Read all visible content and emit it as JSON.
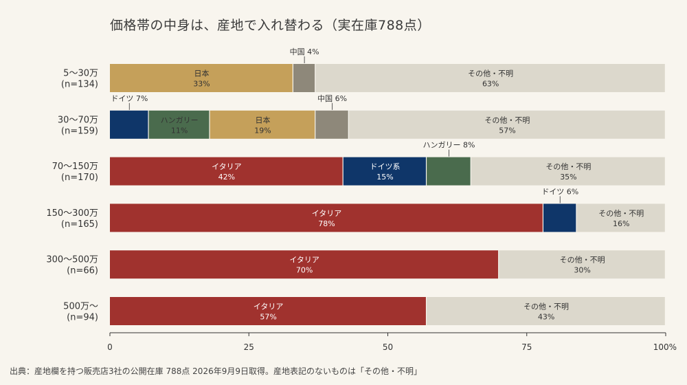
{
  "chart_data": {
    "type": "bar",
    "orientation": "horizontal",
    "stacked": true,
    "title": "価格帯の中身は、産地で入れ替わる（実在庫788点）",
    "xlim": [
      0,
      100
    ],
    "x_ticks": [
      "0",
      "25",
      "50",
      "75",
      "100%"
    ],
    "x_tick_values": [
      0,
      25,
      50,
      75,
      100
    ],
    "categories": [
      {
        "label_line1": "5〜30万",
        "label_line2": "(n=134)"
      },
      {
        "label_line1": "30〜70万",
        "label_line2": "(n=159)"
      },
      {
        "label_line1": "70〜150万",
        "label_line2": "(n=170)"
      },
      {
        "label_line1": "150〜300万",
        "label_line2": "(n=165)"
      },
      {
        "label_line1": "300〜500万",
        "label_line2": "(n=66)"
      },
      {
        "label_line1": "500万〜",
        "label_line2": "(n=94)"
      }
    ],
    "colors": {
      "italy": "#a0322e",
      "germany": "#0f3669",
      "hungary": "#4a6b4d",
      "japan": "#c5a05a",
      "china": "#8e887a",
      "other": "#dcd8cc"
    },
    "rows": [
      {
        "segments": [
          {
            "name": "日本",
            "value": 33,
            "label": "33%",
            "color": "japan",
            "text": "dark",
            "inside": true
          },
          {
            "name": "中国",
            "value": 4,
            "label": "4%",
            "color": "china",
            "inside": false,
            "callout": "中国 4%"
          },
          {
            "name": "その他・不明",
            "value": 63,
            "label": "63%",
            "color": "other",
            "text": "dark",
            "inside": true
          }
        ]
      },
      {
        "segments": [
          {
            "name": "ドイツ",
            "value": 7,
            "label": "7%",
            "color": "germany",
            "inside": false,
            "callout": "ドイツ 7%"
          },
          {
            "name": "ハンガリー",
            "value": 11,
            "label": "11%",
            "color": "hungary",
            "text": "dark",
            "inside": true
          },
          {
            "name": "日本",
            "value": 19,
            "label": "19%",
            "color": "japan",
            "text": "dark",
            "inside": true
          },
          {
            "name": "中国",
            "value": 6,
            "label": "6%",
            "color": "china",
            "inside": false,
            "callout": "中国 6%"
          },
          {
            "name": "その他・不明",
            "value": 57,
            "label": "57%",
            "color": "other",
            "text": "dark",
            "inside": true
          }
        ]
      },
      {
        "segments": [
          {
            "name": "イタリア",
            "value": 42,
            "label": "42%",
            "color": "italy",
            "text": "light",
            "inside": true
          },
          {
            "name": "ドイツ系",
            "value": 15,
            "label": "15%",
            "color": "germany",
            "text": "light",
            "inside": true
          },
          {
            "name": "ハンガリー",
            "value": 8,
            "label": "8%",
            "color": "hungary",
            "inside": false,
            "callout": "ハンガリー 8%"
          },
          {
            "name": "その他・不明",
            "value": 35,
            "label": "35%",
            "color": "other",
            "text": "dark",
            "inside": true
          }
        ]
      },
      {
        "segments": [
          {
            "name": "イタリア",
            "value": 78,
            "label": "78%",
            "color": "italy",
            "text": "light",
            "inside": true
          },
          {
            "name": "ドイツ",
            "value": 6,
            "label": "6%",
            "color": "germany",
            "inside": false,
            "callout": "ドイツ 6%"
          },
          {
            "name": "その他・不明",
            "value": 16,
            "label": "16%",
            "color": "other",
            "text": "dark",
            "inside": true
          }
        ]
      },
      {
        "segments": [
          {
            "name": "イタリア",
            "value": 70,
            "label": "70%",
            "color": "italy",
            "text": "light",
            "inside": true
          },
          {
            "name": "その他・不明",
            "value": 30,
            "label": "30%",
            "color": "other",
            "text": "dark",
            "inside": true
          }
        ]
      },
      {
        "segments": [
          {
            "name": "イタリア",
            "value": 57,
            "label": "57%",
            "color": "italy",
            "text": "light",
            "inside": true
          },
          {
            "name": "その他・不明",
            "value": 43,
            "label": "43%",
            "color": "other",
            "text": "dark",
            "inside": true
          }
        ]
      }
    ],
    "source": "出典：産地欄を持つ販売店3社の公開在庫 788点 2026年9月9日取得。産地表記のないものは「その他・不明」"
  }
}
